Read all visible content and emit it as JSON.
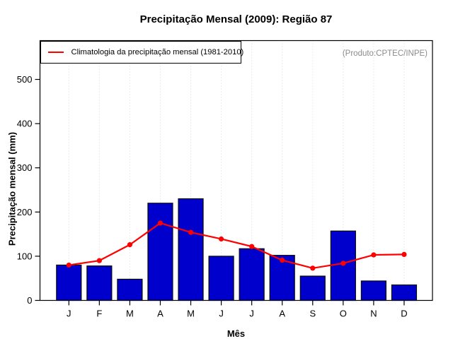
{
  "title": "Precipitação Mensal (2009): Região 87",
  "annotation": "(Produto:CPTEC/INPE)",
  "legend": {
    "label": "Climatologia da precipitação mensal (1981-2010)"
  },
  "chart_data": {
    "type": "bar",
    "title": "Precipitação Mensal (2009): Região 87",
    "xlabel": "Mês",
    "ylabel": "Precipitação mensal (mm)",
    "categories": [
      "J",
      "F",
      "M",
      "A",
      "M",
      "J",
      "J",
      "A",
      "S",
      "O",
      "N",
      "D"
    ],
    "bar_values": [
      80,
      78,
      48,
      220,
      230,
      100,
      117,
      102,
      55,
      157,
      44,
      35
    ],
    "line_series": {
      "name": "Climatologia da precipitação mensal (1981-2010)",
      "values": [
        80,
        90,
        126,
        175,
        154,
        139,
        122,
        91,
        73,
        84,
        103,
        104
      ]
    },
    "yticks": [
      0,
      100,
      200,
      300,
      400,
      500
    ],
    "ylim": [
      0,
      587
    ],
    "grid": "vertical-dotted",
    "legend_position": "top-left",
    "colors": {
      "bar_fill": "#0000CC",
      "bar_border": "#0A0A0A",
      "line": "#FF0000",
      "grid": "#DADADA",
      "axis": "#000000",
      "annotation_text": "#8C8C8C"
    }
  }
}
